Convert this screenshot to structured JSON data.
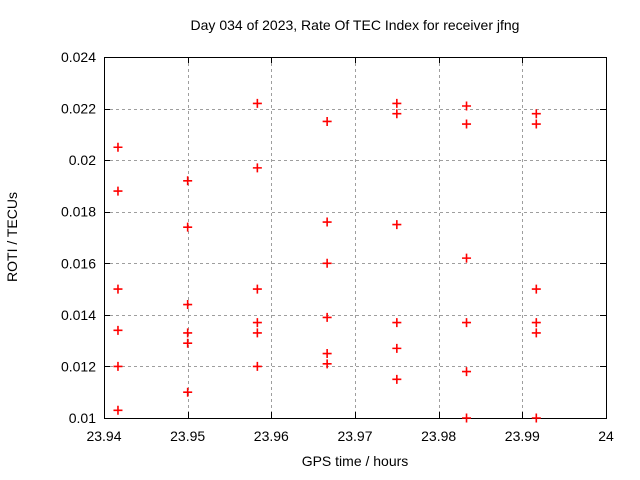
{
  "chart_data": {
    "type": "scatter",
    "title": "Day 034 of 2023, Rate Of TEC Index for receiver jfng",
    "xlabel": "GPS time / hours",
    "ylabel": "ROTI / TECUs",
    "xlim": [
      23.94,
      24
    ],
    "ylim": [
      0.01,
      0.024
    ],
    "xticks": {
      "values": [
        23.94,
        23.95,
        23.96,
        23.97,
        23.98,
        23.99,
        24
      ],
      "labels": [
        "23.94",
        "23.95",
        "23.96",
        "23.97",
        "23.98",
        "23.99",
        "24"
      ]
    },
    "yticks": {
      "values": [
        0.01,
        0.012,
        0.014,
        0.016,
        0.018,
        0.02,
        0.022,
        0.024
      ],
      "labels": [
        "0.01",
        "0.012",
        "0.014",
        "0.016",
        "0.018",
        "0.02",
        "0.022",
        "0.024"
      ]
    },
    "grid": true,
    "legend": "none",
    "marker": "plus",
    "colors": {
      "marker": "#ff0000",
      "grid": "#9e9e9e",
      "axis": "#000000",
      "text": "#000000",
      "background": "#ffffff"
    },
    "series": [
      {
        "name": "ROTI",
        "points": [
          [
            23.94167,
            0.0205
          ],
          [
            23.94167,
            0.0188
          ],
          [
            23.94167,
            0.015
          ],
          [
            23.94167,
            0.0134
          ],
          [
            23.94167,
            0.012
          ],
          [
            23.94167,
            0.0103
          ],
          [
            23.95,
            0.0192
          ],
          [
            23.95,
            0.0174
          ],
          [
            23.95,
            0.0144
          ],
          [
            23.95,
            0.0133
          ],
          [
            23.95,
            0.0129
          ],
          [
            23.95,
            0.011
          ],
          [
            23.95833,
            0.0222
          ],
          [
            23.95833,
            0.0197
          ],
          [
            23.95833,
            0.015
          ],
          [
            23.95833,
            0.0137
          ],
          [
            23.95833,
            0.0133
          ],
          [
            23.95833,
            0.012
          ],
          [
            23.96667,
            0.0215
          ],
          [
            23.96667,
            0.0176
          ],
          [
            23.96667,
            0.016
          ],
          [
            23.96667,
            0.0139
          ],
          [
            23.96667,
            0.0125
          ],
          [
            23.96667,
            0.0121
          ],
          [
            23.975,
            0.0222
          ],
          [
            23.975,
            0.0218
          ],
          [
            23.975,
            0.0175
          ],
          [
            23.975,
            0.0137
          ],
          [
            23.975,
            0.0127
          ],
          [
            23.975,
            0.0115
          ],
          [
            23.98333,
            0.0221
          ],
          [
            23.98333,
            0.0214
          ],
          [
            23.98333,
            0.0162
          ],
          [
            23.98333,
            0.0137
          ],
          [
            23.98333,
            0.0118
          ],
          [
            23.98333,
            0.01
          ],
          [
            23.99167,
            0.0218
          ],
          [
            23.99167,
            0.0214
          ],
          [
            23.99167,
            0.015
          ],
          [
            23.99167,
            0.0137
          ],
          [
            23.99167,
            0.0133
          ],
          [
            23.99167,
            0.01
          ]
        ]
      }
    ]
  }
}
